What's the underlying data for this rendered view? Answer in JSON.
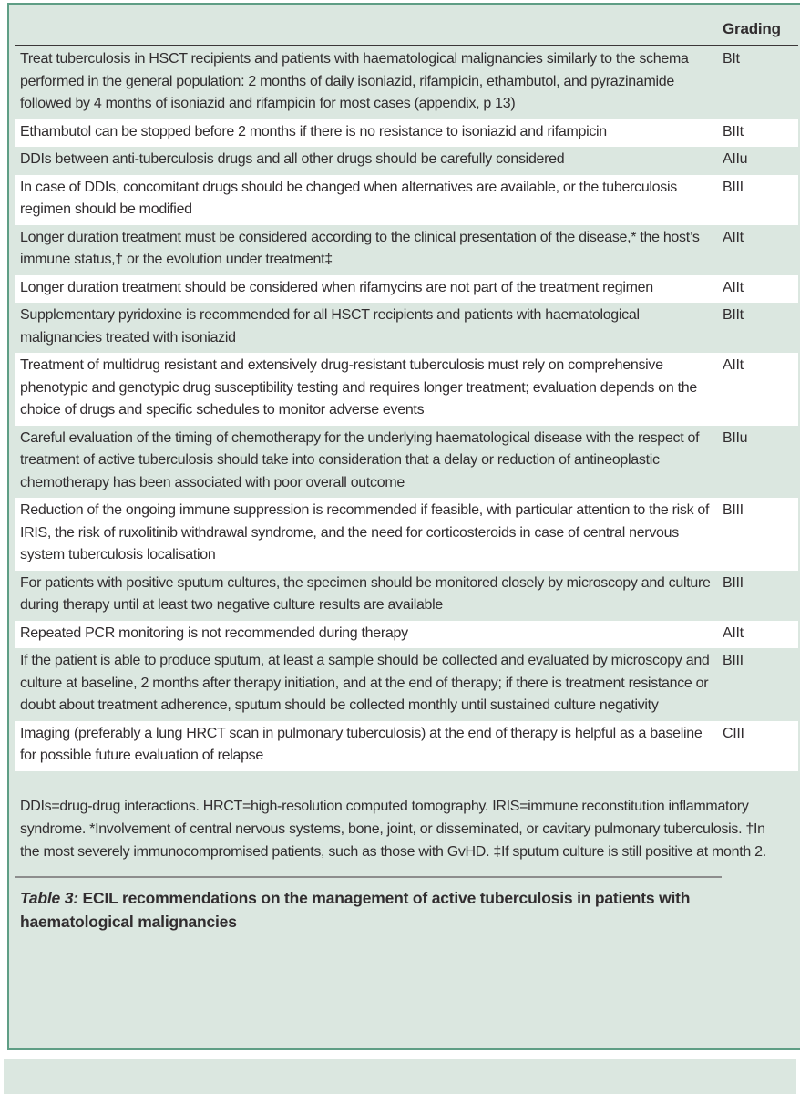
{
  "table": {
    "header": {
      "grading_label": "Grading"
    },
    "rows": [
      {
        "text": "Treat tuberculosis in HSCT recipients and patients with haematological malignancies similarly to the schema performed in the general population: 2 months of daily isoniazid, rifampicin, ethambutol, and pyrazinamide followed by 4 months of isoniazid and rifampicin for most cases (appendix, p 13)",
        "grading": "BIt"
      },
      {
        "text": "Ethambutol can be stopped before 2 months if there is no resistance to isoniazid and rifampicin",
        "grading": "BIIt"
      },
      {
        "text": "DDIs between anti-tuberculosis drugs and all other drugs should be carefully considered",
        "grading": "AIIu"
      },
      {
        "text": "In case of DDIs, concomitant drugs should be changed when alternatives are available, or the tuberculosis regimen should be modified",
        "grading": "BIII"
      },
      {
        "text": "Longer duration treatment must be considered according to the clinical presentation of the disease,* the host’s immune status,† or the evolution under treatment‡",
        "grading": "AIIt"
      },
      {
        "text": "Longer duration treatment should be considered when rifamycins are not part of the treatment regimen",
        "grading": "AIIt"
      },
      {
        "text": "Supplementary pyridoxine is recommended for all HSCT recipients and patients with haematological malignancies treated with isoniazid",
        "grading": "BIIt"
      },
      {
        "text": "Treatment of multidrug resistant and extensively drug-resistant tuberculosis must rely on comprehensive phenotypic and genotypic drug susceptibility testing and requires longer treatment; evaluation depends on the choice of drugs and specific schedules to monitor adverse events",
        "grading": "AIIt"
      },
      {
        "text": "Careful evaluation of the timing of chemotherapy for the underlying haematological disease with the respect of treatment of active tuberculosis should take into consideration that a delay or reduction of antineoplastic chemotherapy has been associated with poor overall outcome",
        "grading": "BIIu"
      },
      {
        "text": "Reduction of the ongoing immune suppression is recommended if feasible, with particular attention to the risk of IRIS, the risk of ruxolitinib withdrawal syndrome, and the need for corticosteroids in case of central nervous system tuberculosis localisation",
        "grading": "BIII"
      },
      {
        "text": "For patients with positive sputum cultures, the specimen should be monitored closely by microscopy and culture during therapy until at least two negative culture results are available",
        "grading": "BIII"
      },
      {
        "text": "Repeated PCR monitoring is not recommended during therapy",
        "grading": "AIIt"
      },
      {
        "text": "If the patient is able to produce sputum, at least a sample should be collected and evaluated by microscopy and culture at baseline, 2 months after therapy initiation, and at the end of therapy; if there is treatment resistance or doubt about treatment adherence, sputum should be collected monthly until sustained culture negativity",
        "grading": "BIII"
      },
      {
        "text": "Imaging (preferably a lung HRCT scan in pulmonary tuberculosis) at the end of therapy is helpful as a baseline for possible future evaluation of relapse",
        "grading": "CIII"
      }
    ],
    "footnote": "DDIs=drug-drug interactions. HRCT=high-resolution computed tomography. IRIS=immune reconstitution inflammatory syndrome. *Involvement of central nervous systems, bone, joint, or disseminated, or cavitary pulmonary tuberculosis. †In the most severely immunocompromised patients, such as those with GvHD. ‡If sputum culture is still positive at month 2.",
    "caption": {
      "label": "Table 3:",
      "text": " ECIL recommendations on the management of active tuberculosis in patients with haematological malignancies"
    }
  },
  "colors": {
    "page_background": "#ffffff",
    "panel_background": "#dbe7e0",
    "row_highlight": "#ffffff",
    "panel_border": "#5f9e85",
    "text": "#312d2f",
    "header_rule": "#3b3738",
    "caption_rule": "#8d8d8d"
  }
}
